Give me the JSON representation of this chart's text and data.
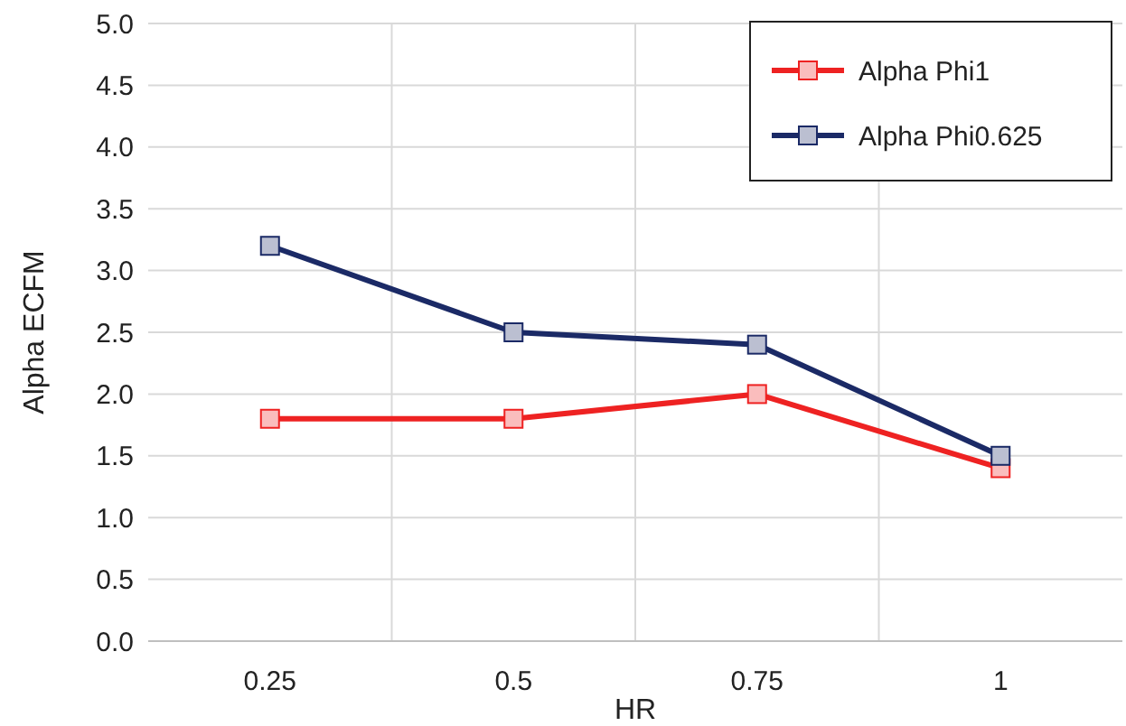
{
  "chart_data": {
    "type": "line",
    "xlabel": "HR",
    "ylabel": "Alpha ECFM",
    "categories": [
      "0.25",
      "0.5",
      "0.75",
      "1"
    ],
    "series": [
      {
        "name": "Alpha Phi1",
        "color": "#ee2222",
        "values": [
          1.8,
          1.8,
          2.0,
          1.4
        ]
      },
      {
        "name": "Alpha Phi0.625",
        "color": "#1b2a66",
        "values": [
          3.2,
          2.5,
          2.4,
          1.5
        ]
      }
    ],
    "ylim": [
      0,
      5
    ],
    "yticks": [
      {
        "value": 0,
        "label": "0.0"
      },
      {
        "value": 0.5,
        "label": "0.5"
      },
      {
        "value": 1,
        "label": "1.0"
      },
      {
        "value": 1.5,
        "label": "1.5"
      },
      {
        "value": 2,
        "label": "2.0"
      },
      {
        "value": 2.5,
        "label": "2.5"
      },
      {
        "value": 3,
        "label": "3.0"
      },
      {
        "value": 3.5,
        "label": "3.5"
      },
      {
        "value": 4,
        "label": "4.0"
      },
      {
        "value": 4.5,
        "label": "4.5"
      },
      {
        "value": 5,
        "label": "5.0"
      }
    ],
    "grid": true,
    "legend": "top right",
    "marker": "square",
    "line_style": "solid"
  }
}
